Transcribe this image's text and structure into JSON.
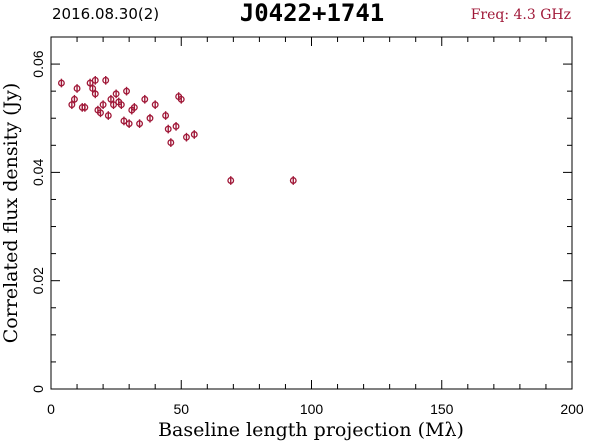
{
  "header": {
    "date_label": "2016.08.30(2)",
    "source_title": "J0422+1741",
    "freq_label": "Freq: 4.3 GHz"
  },
  "chart_data": {
    "type": "scatter",
    "title": "J0422+1741",
    "xlabel": "Baseline length projection (Mλ)",
    "ylabel": "Correlated flux density (Jy)",
    "xlim": [
      0,
      200
    ],
    "ylim": [
      0,
      0.065
    ],
    "xticks": [
      0,
      50,
      100,
      150,
      200
    ],
    "xtick_labels": [
      "0",
      "50",
      "100",
      "150",
      "200"
    ],
    "yticks": [
      0,
      0.02,
      0.04,
      0.06
    ],
    "ytick_labels": [
      "0",
      "0.02",
      "0.04",
      "0.06"
    ],
    "grid": false,
    "colors": {
      "points": "#a01838",
      "axes": "#000000"
    },
    "series": [
      {
        "x": [
          4,
          8,
          9,
          10,
          12,
          13,
          15,
          16,
          17,
          17,
          18,
          19,
          20,
          21,
          22,
          23,
          24,
          25,
          26,
          27,
          28,
          29,
          30,
          31,
          32,
          34,
          36,
          38,
          40,
          44,
          45,
          46,
          48,
          49,
          50,
          52,
          55,
          69,
          93
        ],
        "y": [
          0.0565,
          0.0525,
          0.0535,
          0.0555,
          0.052,
          0.052,
          0.0565,
          0.0555,
          0.0545,
          0.057,
          0.0515,
          0.051,
          0.0525,
          0.057,
          0.0505,
          0.0535,
          0.0525,
          0.0545,
          0.053,
          0.0525,
          0.0495,
          0.055,
          0.049,
          0.0515,
          0.052,
          0.049,
          0.0535,
          0.05,
          0.0525,
          0.0505,
          0.048,
          0.0455,
          0.0485,
          0.054,
          0.0535,
          0.0465,
          0.047,
          0.0385,
          0.0385
        ],
        "error": 0.0008
      }
    ]
  }
}
